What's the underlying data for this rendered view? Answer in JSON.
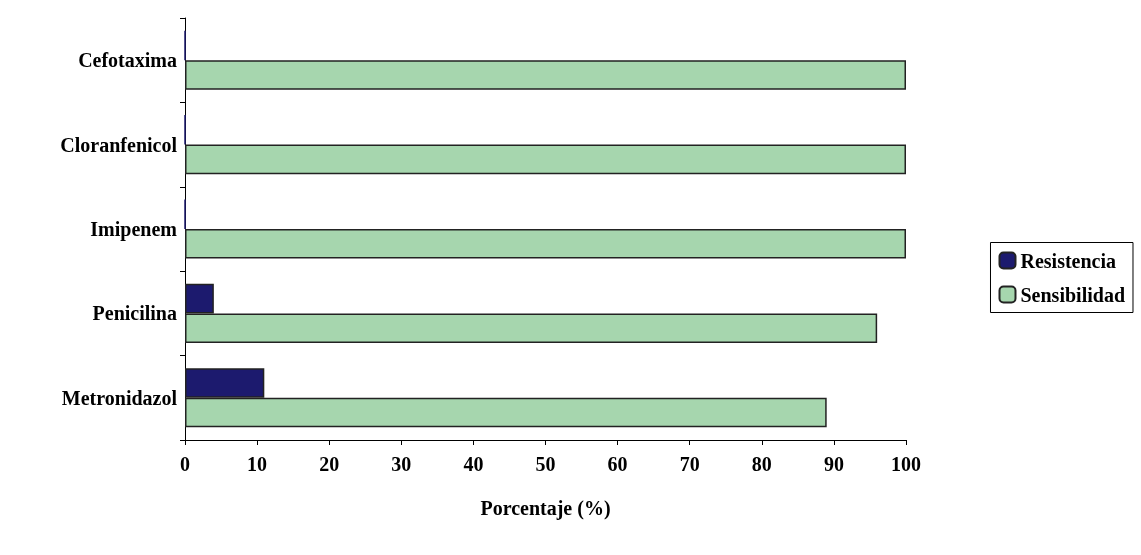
{
  "chart_data": {
    "type": "bar",
    "orientation": "horizontal",
    "xlabel": "Porcentaje (%)",
    "categories": [
      "Cefotaxima",
      "Cloranfenicol",
      "Imipenem",
      "Penicilina",
      "Metronidazol"
    ],
    "series": [
      {
        "name": "Resistencia",
        "color": "#1c1a6e",
        "values": [
          0,
          0,
          0,
          4,
          11
        ]
      },
      {
        "name": "Sensibilidad",
        "color": "#a6d6ae",
        "values": [
          100,
          100,
          100,
          96,
          89
        ]
      }
    ],
    "xlim": [
      0,
      100
    ],
    "xticks": [
      0,
      10,
      20,
      30,
      40,
      50,
      60,
      70,
      80,
      90,
      100
    ],
    "grid": false,
    "legend": "right"
  }
}
